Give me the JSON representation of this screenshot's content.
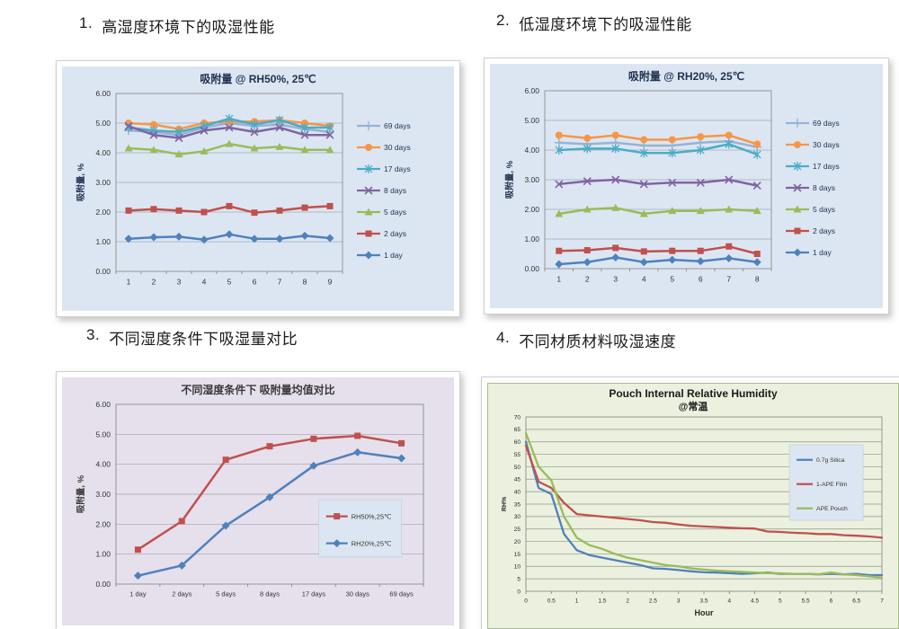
{
  "sections": [
    {
      "number": "1.",
      "title": "高湿度环境下的吸湿性能"
    },
    {
      "number": "2.",
      "title": "低湿度环境下的吸湿性能"
    },
    {
      "number": "3.",
      "title": "不同湿度条件下吸湿量对比"
    },
    {
      "number": "4.",
      "title": "不同材质材料吸湿速度"
    }
  ],
  "chart_data": [
    {
      "id": "rh50",
      "type": "line",
      "title": "吸附量 @ RH50%, 25℃",
      "title_color": "#1f3050",
      "panel_bg": "#dce6f2",
      "grid_color": "#a3aab4",
      "text_color": "#333333",
      "legend_text_color": "#1f3050",
      "ylabel": "吸附量, %",
      "xlabel": "",
      "ylim": [
        0,
        6
      ],
      "ystep": 1,
      "ytick_decimals": 2,
      "grid": true,
      "legend_position": "right",
      "categories": [
        "1",
        "2",
        "3",
        "4",
        "5",
        "6",
        "7",
        "8",
        "9"
      ],
      "series": [
        {
          "name": "69 days",
          "color": "#95b3d7",
          "marker": "plus",
          "values": [
            4.75,
            4.7,
            4.6,
            4.85,
            5.0,
            4.9,
            4.95,
            4.8,
            4.7
          ]
        },
        {
          "name": "30 days",
          "color": "#f79646",
          "marker": "circle",
          "values": [
            5.0,
            4.95,
            4.8,
            5.0,
            5.05,
            5.05,
            5.1,
            5.0,
            4.9
          ]
        },
        {
          "name": "17 days",
          "color": "#4bacc6",
          "marker": "asterisk",
          "values": [
            4.85,
            4.75,
            4.7,
            4.9,
            5.15,
            4.95,
            5.1,
            4.85,
            4.85
          ]
        },
        {
          "name": "8 days",
          "color": "#8064a2",
          "marker": "x",
          "values": [
            4.9,
            4.6,
            4.5,
            4.75,
            4.85,
            4.7,
            4.85,
            4.6,
            4.6
          ]
        },
        {
          "name": "5 days",
          "color": "#9bbb59",
          "marker": "triangle",
          "values": [
            4.15,
            4.1,
            3.95,
            4.05,
            4.3,
            4.15,
            4.2,
            4.1,
            4.1
          ]
        },
        {
          "name": "2 days",
          "color": "#c0504d",
          "marker": "square",
          "values": [
            2.05,
            2.1,
            2.05,
            2.0,
            2.2,
            1.98,
            2.05,
            2.15,
            2.2
          ]
        },
        {
          "name": "1 day",
          "color": "#4f81bd",
          "marker": "diamond",
          "values": [
            1.1,
            1.15,
            1.17,
            1.07,
            1.25,
            1.1,
            1.1,
            1.2,
            1.12
          ]
        }
      ]
    },
    {
      "id": "rh20",
      "type": "line",
      "title": "吸附量 @ RH20%, 25℃",
      "title_color": "#1f3050",
      "panel_bg": "#dce6f2",
      "grid_color": "#a3aab4",
      "text_color": "#333333",
      "legend_text_color": "#1f3050",
      "ylabel": "吸附量, %",
      "xlabel": "",
      "ylim": [
        0,
        6
      ],
      "ystep": 1,
      "ytick_decimals": 2,
      "grid": true,
      "legend_position": "right",
      "categories": [
        "1",
        "2",
        "3",
        "4",
        "5",
        "6",
        "7",
        "8"
      ],
      "series": [
        {
          "name": "69 days",
          "color": "#95b3d7",
          "marker": "plus",
          "values": [
            4.25,
            4.2,
            4.25,
            4.15,
            4.15,
            4.25,
            4.3,
            4.1
          ]
        },
        {
          "name": "30 days",
          "color": "#f79646",
          "marker": "circle",
          "values": [
            4.5,
            4.4,
            4.5,
            4.35,
            4.35,
            4.45,
            4.5,
            4.2
          ]
        },
        {
          "name": "17 days",
          "color": "#4bacc6",
          "marker": "asterisk",
          "values": [
            4.0,
            4.05,
            4.05,
            3.9,
            3.9,
            4.0,
            4.2,
            3.85
          ]
        },
        {
          "name": "8 days",
          "color": "#8064a2",
          "marker": "x",
          "values": [
            2.85,
            2.95,
            3.0,
            2.85,
            2.9,
            2.9,
            3.0,
            2.8
          ]
        },
        {
          "name": "5 days",
          "color": "#9bbb59",
          "marker": "triangle",
          "values": [
            1.85,
            2.0,
            2.05,
            1.85,
            1.95,
            1.95,
            2.0,
            1.95
          ]
        },
        {
          "name": "2 days",
          "color": "#c0504d",
          "marker": "square",
          "values": [
            0.6,
            0.62,
            0.7,
            0.58,
            0.6,
            0.6,
            0.75,
            0.5
          ]
        },
        {
          "name": "1 day",
          "color": "#4f81bd",
          "marker": "diamond",
          "values": [
            0.15,
            0.22,
            0.38,
            0.22,
            0.3,
            0.25,
            0.35,
            0.22
          ]
        }
      ]
    },
    {
      "id": "compare",
      "type": "line",
      "title": "不同湿度条件下 吸附量均值对比",
      "title_color": "#3a3a3a",
      "panel_bg": "#e5e0ec",
      "grid_color": "#a3a0ab",
      "text_color": "#333333",
      "legend_text_color": "#333333",
      "legend_bg": "#dce6f2",
      "ylabel": "吸附量, %",
      "xlabel": "",
      "ylim": [
        0,
        6
      ],
      "ystep": 1,
      "ytick_decimals": 2,
      "grid": true,
      "legend_position": "inside",
      "categories": [
        "1 day",
        "2 days",
        "5 days",
        "8 days",
        "17 days",
        "30 days",
        "69 days"
      ],
      "series": [
        {
          "name": "RH50%,25℃",
          "color": "#c0504d",
          "marker": "square",
          "values": [
            1.15,
            2.1,
            4.15,
            4.6,
            4.85,
            4.95,
            4.7
          ]
        },
        {
          "name": "RH20%,25℃",
          "color": "#4f81bd",
          "marker": "diamond",
          "values": [
            0.28,
            0.62,
            1.95,
            2.9,
            3.95,
            4.4,
            4.2
          ]
        }
      ]
    },
    {
      "id": "pouch",
      "type": "line",
      "title": "Pouch Internal Relative Humidity",
      "subtitle": "@常温",
      "title_color": "#1a1a1a",
      "panel_bg": "#ebf1de",
      "panel_border": "#aab98e",
      "grid_color": "#8e9585",
      "text_color": "#2a2a2a",
      "legend_text_color": "#3a3430",
      "legend_bg": "#dce6f2",
      "ylabel": "RH%",
      "xlabel": "Hour",
      "ylim": [
        0,
        70
      ],
      "ystep": 5,
      "ytick_decimals": 0,
      "grid": true,
      "legend_position": "inside",
      "xlim": [
        0,
        7
      ],
      "xticks": [
        0,
        0.5,
        1,
        1.5,
        2,
        2.5,
        3,
        3.5,
        4,
        4.5,
        5,
        5.5,
        6,
        6.5,
        7
      ],
      "x": [
        0,
        0.25,
        0.5,
        0.75,
        1,
        1.25,
        1.5,
        1.75,
        2,
        2.25,
        2.5,
        2.75,
        3,
        3.25,
        3.5,
        3.75,
        4,
        4.25,
        4.5,
        4.75,
        5,
        5.25,
        5.5,
        5.75,
        6,
        6.25,
        6.5,
        6.75,
        7
      ],
      "series": [
        {
          "name": "0.7g Silica",
          "color": "#4f81bd",
          "marker": "none",
          "values": [
            60,
            41.5,
            39,
            23,
            16.5,
            14.5,
            13.5,
            12.5,
            11.5,
            10.5,
            9.2,
            9,
            8.5,
            8,
            7.6,
            7.5,
            7.3,
            7,
            7.2,
            7.5,
            7,
            7,
            7,
            6.8,
            7,
            6.8,
            7,
            6.5,
            6.5
          ]
        },
        {
          "name": "1-APE Film",
          "color": "#c0504d",
          "marker": "none",
          "values": [
            58.5,
            44,
            41.5,
            35.5,
            31,
            30.5,
            30,
            29.5,
            29,
            28.5,
            27.8,
            27.5,
            26.8,
            26.3,
            26,
            25.8,
            25.5,
            25.3,
            25.2,
            24,
            23.8,
            23.5,
            23.3,
            23,
            23,
            22.5,
            22.3,
            22,
            21.5
          ]
        },
        {
          "name": "APE Pouch",
          "color": "#9bbb59",
          "marker": "none",
          "values": [
            63.5,
            50,
            44.5,
            30,
            21.5,
            18.5,
            17,
            15,
            13.5,
            12.5,
            11.5,
            10.5,
            10,
            9.2,
            8.7,
            8.3,
            8,
            7.8,
            7.5,
            7.3,
            7.2,
            7,
            7,
            6.8,
            7.5,
            6.8,
            6.5,
            6,
            5.5
          ]
        }
      ]
    }
  ]
}
